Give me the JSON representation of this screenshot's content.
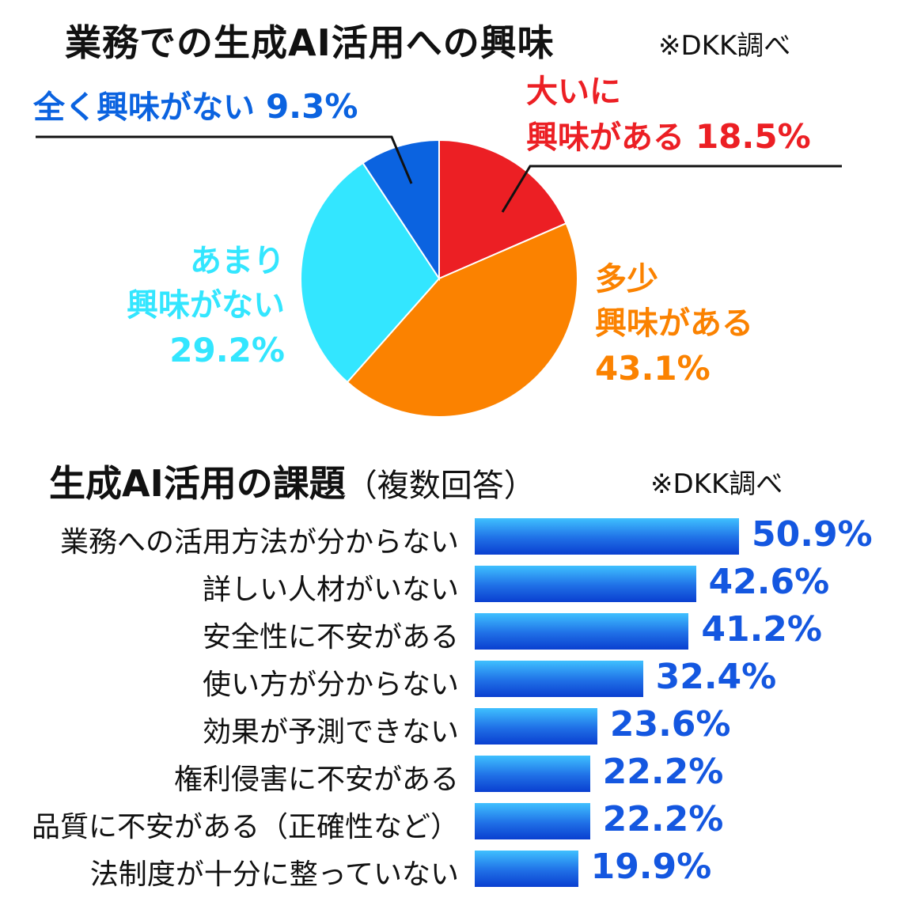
{
  "chart_data": [
    {
      "type": "pie",
      "title": "業務での生成AI活用への興味",
      "source": "※DKK調べ",
      "slices": [
        {
          "label_line1": "大いに",
          "label_line2": "興味がある",
          "value": 18.5,
          "value_text": "18.5%",
          "color": "#ec1f24"
        },
        {
          "label_line1": "多少",
          "label_line2": "興味がある",
          "value": 43.1,
          "value_text": "43.1%",
          "color": "#fb8200"
        },
        {
          "label_line1": "あまり",
          "label_line2": "興味がない",
          "value": 29.2,
          "value_text": "29.2%",
          "color": "#33e6ff"
        },
        {
          "label_line1": "全く興味がない",
          "label_line2": "",
          "value": 9.3,
          "value_text": "9.3%",
          "color": "#0b63e0"
        }
      ]
    },
    {
      "type": "bar",
      "orientation": "horizontal",
      "title": "生成AI活用の課題",
      "title_note": "（複数回答）",
      "source": "※DKK調べ",
      "max_value": 50.9,
      "bar_color_top": "#3fc0ff",
      "bar_color_bottom": "#0a3fd0",
      "value_color": "#1457e0",
      "categories": [
        "業務への活用方法が分からない",
        "詳しい人材がいない",
        "安全性に不安がある",
        "使い方が分からない",
        "効果が予測できない",
        "権利侵害に不安がある",
        "品質に不安がある（正確性など）",
        "法制度が十分に整っていない"
      ],
      "values": [
        50.9,
        42.6,
        41.2,
        32.4,
        23.6,
        22.2,
        22.2,
        19.9
      ],
      "value_texts": [
        "50.9%",
        "42.6%",
        "41.2%",
        "32.4%",
        "23.6%",
        "22.2%",
        "22.2%",
        "19.9%"
      ]
    }
  ]
}
